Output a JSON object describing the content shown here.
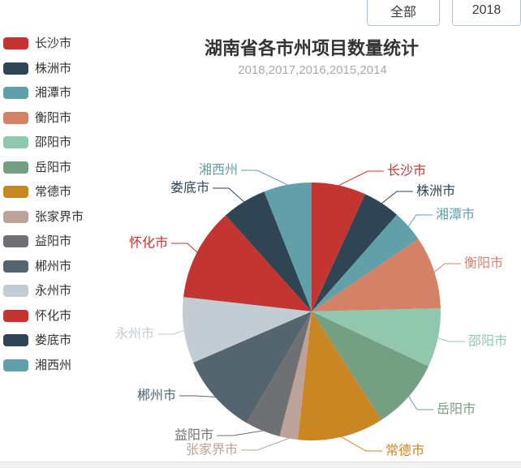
{
  "filters": {
    "all_button": "全部",
    "year_button": "2018"
  },
  "chart_data": {
    "type": "pie",
    "title": "湖南省各市州项目数量统计",
    "subtitle": "2018,2017,2016,2015,2014",
    "legend_position": "left",
    "categories": [
      "长沙市",
      "株洲市",
      "湘潭市",
      "衡阳市",
      "邵阳市",
      "岳阳市",
      "常德市",
      "张家界市",
      "益阳市",
      "郴州市",
      "永州市",
      "怀化市",
      "娄底市",
      "湘西州"
    ],
    "values_pct_est": [
      6.8,
      4.7,
      4.0,
      9.1,
      7.4,
      8.9,
      10.8,
      2.3,
      4.4,
      10.1,
      8.3,
      11.6,
      5.6,
      6.0
    ],
    "colors": [
      "#c23531",
      "#2f4554",
      "#61a0a8",
      "#d48265",
      "#91c7ae",
      "#749f83",
      "#ca8622",
      "#bda29a",
      "#6e7074",
      "#546570",
      "#c4ccd3",
      "#c23531",
      "#2f4554",
      "#61a0a8"
    ],
    "title_color": "#333333",
    "subtitle_color": "#aaaaaa",
    "button_border_color": "#aac4de"
  }
}
